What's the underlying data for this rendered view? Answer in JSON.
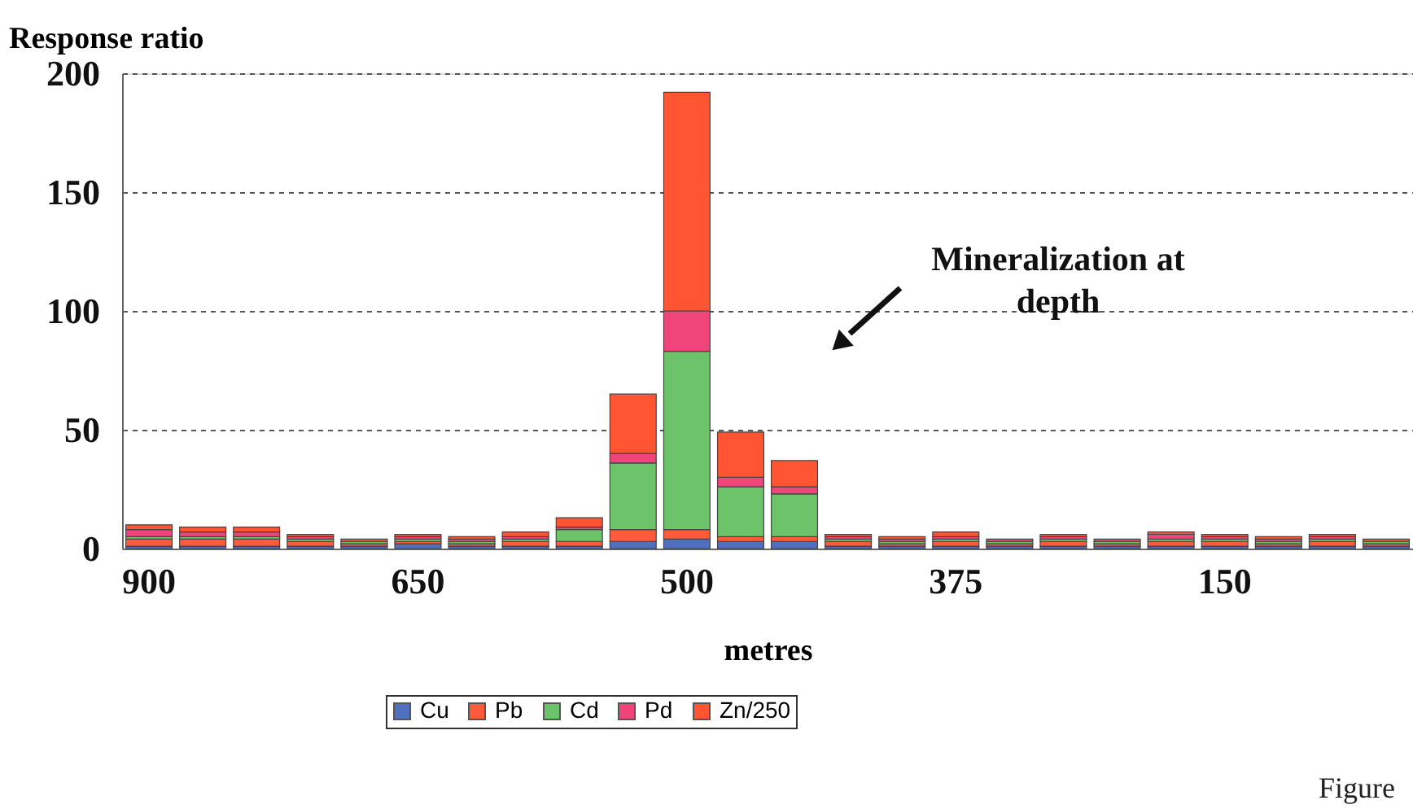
{
  "chart_data": {
    "type": "bar",
    "stacked": true,
    "ylabel": "Response ratio",
    "xlabel": "metres",
    "categories": [
      "900",
      null,
      null,
      null,
      null,
      "650",
      null,
      null,
      null,
      null,
      "500",
      null,
      null,
      null,
      null,
      "375",
      null,
      null,
      null,
      null,
      "150",
      null,
      null,
      null
    ],
    "series": [
      {
        "name": "Cu",
        "color": "#4f6fbf",
        "values": [
          1,
          1,
          1,
          1,
          1,
          2,
          1,
          1,
          1,
          3,
          4,
          3,
          3,
          1,
          1,
          1,
          1,
          1,
          1,
          1,
          1,
          1,
          1,
          1
        ]
      },
      {
        "name": "Pb",
        "color": "#ff5a3c",
        "values": [
          3,
          3,
          3,
          2,
          1,
          1,
          1,
          2,
          2,
          5,
          4,
          2,
          2,
          2,
          1,
          2,
          1,
          2,
          1,
          2,
          2,
          1,
          2,
          1
        ]
      },
      {
        "name": "Cd",
        "color": "#6cc36a",
        "values": [
          1,
          1,
          1,
          1,
          1,
          1,
          1,
          1,
          5,
          28,
          75,
          21,
          18,
          1,
          1,
          1,
          1,
          1,
          1,
          1,
          1,
          1,
          1,
          1
        ]
      },
      {
        "name": "Pd",
        "color": "#f0457a",
        "values": [
          3,
          2,
          2,
          1,
          null,
          1,
          1,
          1,
          1,
          4,
          17,
          4,
          3,
          1,
          1,
          1,
          1,
          1,
          1,
          2,
          1,
          1,
          1,
          null
        ]
      },
      {
        "name": "Zn/250",
        "color": "#ff5533",
        "values": [
          2,
          2,
          2,
          1,
          1,
          1,
          1,
          2,
          4,
          25,
          92,
          19,
          11,
          1,
          1,
          2,
          null,
          1,
          null,
          1,
          1,
          1,
          1,
          1
        ]
      }
    ],
    "ylim": [
      0,
      200
    ],
    "yticks": [
      0,
      50,
      100,
      150,
      200
    ],
    "grid": "y",
    "legend": "bottom",
    "annotations": [
      "Mineralization at depth",
      "Figure"
    ]
  }
}
